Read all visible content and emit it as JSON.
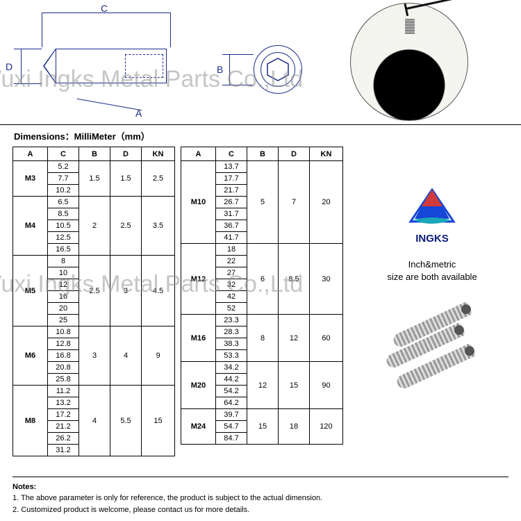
{
  "diagram": {
    "labels": {
      "C": "C",
      "D": "D",
      "A": "A",
      "B": "B"
    },
    "line_color": "#1a2a8a"
  },
  "dims_title": "Dimensions：MilliMeter（mm）",
  "headers": [
    "A",
    "C",
    "B",
    "D",
    "KN"
  ],
  "table_left": [
    {
      "a": "M3",
      "c": [
        "5.2",
        "7.7",
        "10.2"
      ],
      "b": "1.5",
      "d": "1.5",
      "kn": "2.5"
    },
    {
      "a": "M4",
      "c": [
        "6.5",
        "8.5",
        "10.5",
        "12.5",
        "16.5"
      ],
      "b": "2",
      "d": "2.5",
      "kn": "3.5"
    },
    {
      "a": "M5",
      "c": [
        "8",
        "10",
        "12",
        "16",
        "20",
        "25"
      ],
      "b": "2.5",
      "d": "3",
      "kn": "4.5"
    },
    {
      "a": "M6",
      "c": [
        "10.8",
        "12.8",
        "16.8",
        "20.8",
        "25.8"
      ],
      "b": "3",
      "d": "4",
      "kn": "9"
    },
    {
      "a": "M8",
      "c": [
        "11.2",
        "13.2",
        "17.2",
        "21.2",
        "26.2",
        "31.2"
      ],
      "b": "4",
      "d": "5.5",
      "kn": "15"
    }
  ],
  "table_right": [
    {
      "a": "M10",
      "c": [
        "13.7",
        "17.7",
        "21.7",
        "26.7",
        "31.7",
        "36.7",
        "41.7"
      ],
      "b": "5",
      "d": "7",
      "kn": "20"
    },
    {
      "a": "M12",
      "c": [
        "18",
        "22",
        "27",
        "32",
        "42",
        "52"
      ],
      "b": "6",
      "d": "8.5",
      "kn": "30"
    },
    {
      "a": "M16",
      "c": [
        "23.3",
        "28.3",
        "38.3",
        "53.3"
      ],
      "b": "8",
      "d": "12",
      "kn": "60"
    },
    {
      "a": "M20",
      "c": [
        "34.2",
        "44.2",
        "54.2",
        "64.2"
      ],
      "b": "12",
      "d": "15",
      "kn": "90"
    },
    {
      "a": "M24",
      "c": [
        "39.7",
        "54.7",
        "84.7"
      ],
      "b": "15",
      "d": "18",
      "kn": "120"
    }
  ],
  "brand": {
    "name": "INGKS",
    "logo_colors": {
      "top": "#d13a3a",
      "mid": "#1646d6",
      "wave": "#1aa8b8"
    },
    "availability_l1": "Inch&metric",
    "availability_l2": "size are both available"
  },
  "notes": {
    "title": "Notes:",
    "n1": "1. The above parameter is only for reference, the product is subject to the actual dimension.",
    "n2": "2. Customized product is welcome, please contact us for more details."
  },
  "watermark": "Wuxi Ingks Metal Parts Co.,Ltd",
  "colors": {
    "border": "#000000",
    "text": "#000000",
    "watermark": "rgba(150,150,150,0.55)"
  }
}
